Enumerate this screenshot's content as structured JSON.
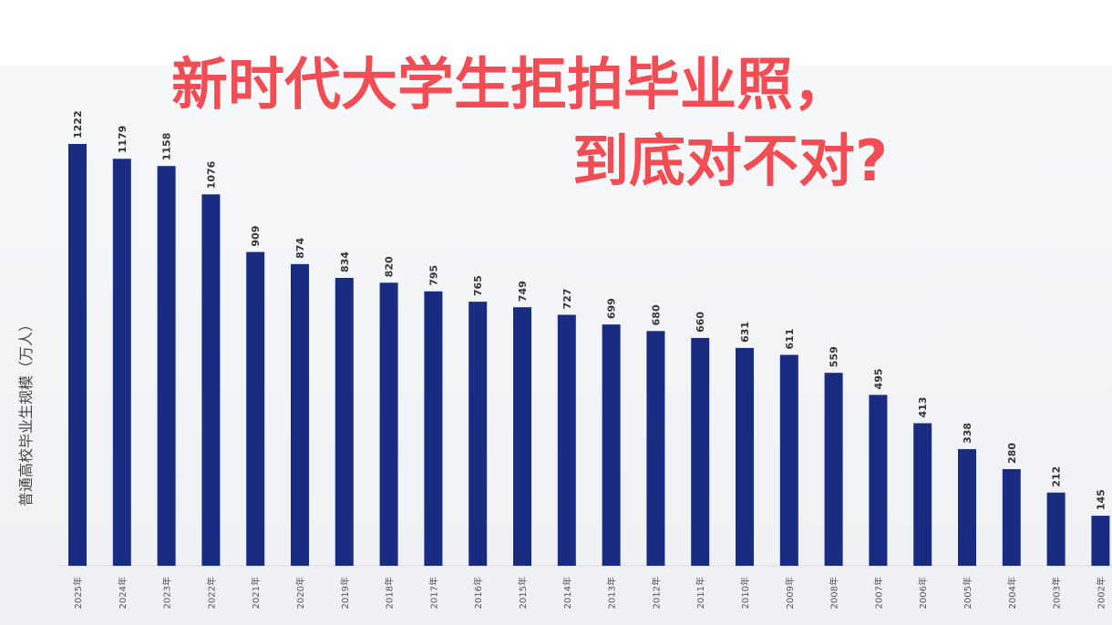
{
  "headline": {
    "line1": "新时代大学生拒拍毕业照，",
    "line2": "到底对不对?",
    "color": "#f24d55"
  },
  "chart_data": {
    "type": "bar",
    "ylabel": "普通高校毕业生规模（万人）",
    "categories": [
      "2025年",
      "2024年",
      "2023年",
      "2022年",
      "2021年",
      "2020年",
      "2019年",
      "2018年",
      "2017年",
      "2016年",
      "2015年",
      "2014年",
      "2013年",
      "2012年",
      "2011年",
      "2010年",
      "2009年",
      "2008年",
      "2007年",
      "2006年",
      "2005年",
      "2004年",
      "2003年",
      "2002年"
    ],
    "values": [
      1222,
      1179,
      1158,
      1076,
      909,
      874,
      834,
      820,
      795,
      765,
      749,
      727,
      699,
      680,
      660,
      631,
      611,
      559,
      495,
      413,
      338,
      280,
      212,
      145
    ],
    "bar_color": "#1a2c82",
    "ylim": [
      0,
      1222
    ],
    "grid": false,
    "legend": "none"
  }
}
